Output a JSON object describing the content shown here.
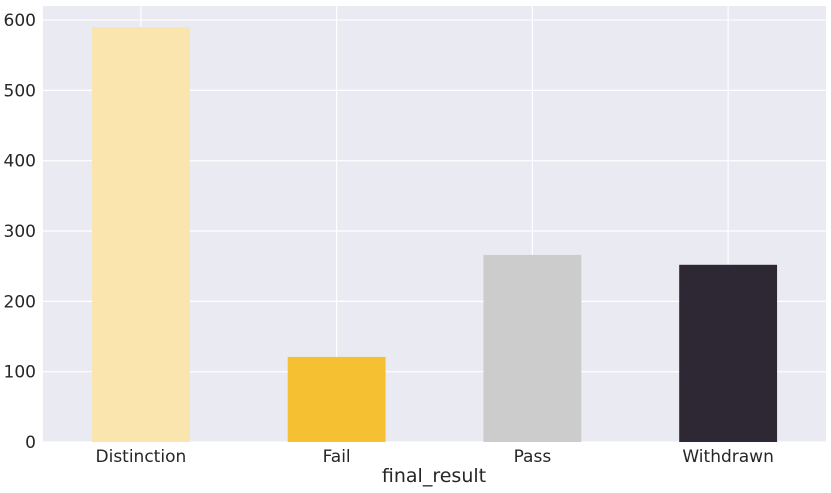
{
  "chart_data": {
    "type": "bar",
    "categories": [
      "Distinction",
      "Fail",
      "Pass",
      "Withdrawn"
    ],
    "values": [
      590,
      121,
      266,
      252
    ],
    "colors": [
      "#fae5ae",
      "#f5c133",
      "#cccccc",
      "#2e2834"
    ],
    "title": "",
    "xlabel": "final_result",
    "ylabel": "",
    "ylim": [
      0,
      620
    ],
    "yticks": [
      0,
      100,
      200,
      300,
      400,
      500,
      600
    ],
    "grid": true,
    "background": "#eaeaf2",
    "grid_color": "#ffffff"
  }
}
